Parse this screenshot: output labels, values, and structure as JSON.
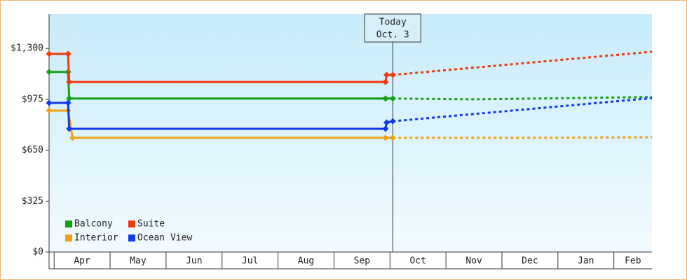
{
  "chart_data": {
    "type": "line",
    "xlim": [
      -0.09,
      10.68
    ],
    "ylim": [
      0,
      1520
    ],
    "yticks": [
      {
        "value": 0,
        "label": "$0"
      },
      {
        "value": 325,
        "label": "$325"
      },
      {
        "value": 650,
        "label": "$650"
      },
      {
        "value": 975,
        "label": "$975"
      },
      {
        "value": 1300,
        "label": "$1,300"
      }
    ],
    "categories": [
      "Apr",
      "May",
      "Jun",
      "Jul",
      "Aug",
      "Sep",
      "Oct",
      "Nov",
      "Dec",
      "Jan",
      "Feb"
    ],
    "xticks": [
      0,
      1,
      2,
      3,
      4,
      5,
      6,
      7,
      8,
      9,
      10
    ],
    "today": {
      "x": 6.05,
      "label": "Today",
      "date": "Oct. 3"
    },
    "legend": "bottom-left",
    "series": [
      {
        "name": "Balcony",
        "color": "#14a014",
        "x": [
          -0.09,
          0.25,
          0.27,
          5.92,
          6.05,
          7.5,
          10.68
        ],
        "values": [
          1150,
          1150,
          980,
          980,
          980,
          975,
          990
        ]
      },
      {
        "name": "Suite",
        "color": "#ee3a0c",
        "x": [
          -0.09,
          0.25,
          0.27,
          5.92,
          5.94,
          6.05,
          10.68
        ],
        "values": [
          1265,
          1265,
          1086,
          1086,
          1131,
          1131,
          1279
        ]
      },
      {
        "name": "Interior",
        "color": "#f0a014",
        "x": [
          -0.09,
          0.25,
          0.33,
          5.92,
          6.05,
          8.5,
          10.68
        ],
        "values": [
          903,
          903,
          729,
          729,
          729,
          729,
          733
        ]
      },
      {
        "name": "Ocean View",
        "color": "#1038ee",
        "x": [
          -0.09,
          0.25,
          0.27,
          5.92,
          5.94,
          6.05,
          10.68
        ],
        "values": [
          952,
          952,
          787,
          787,
          827,
          835,
          983
        ]
      }
    ]
  }
}
